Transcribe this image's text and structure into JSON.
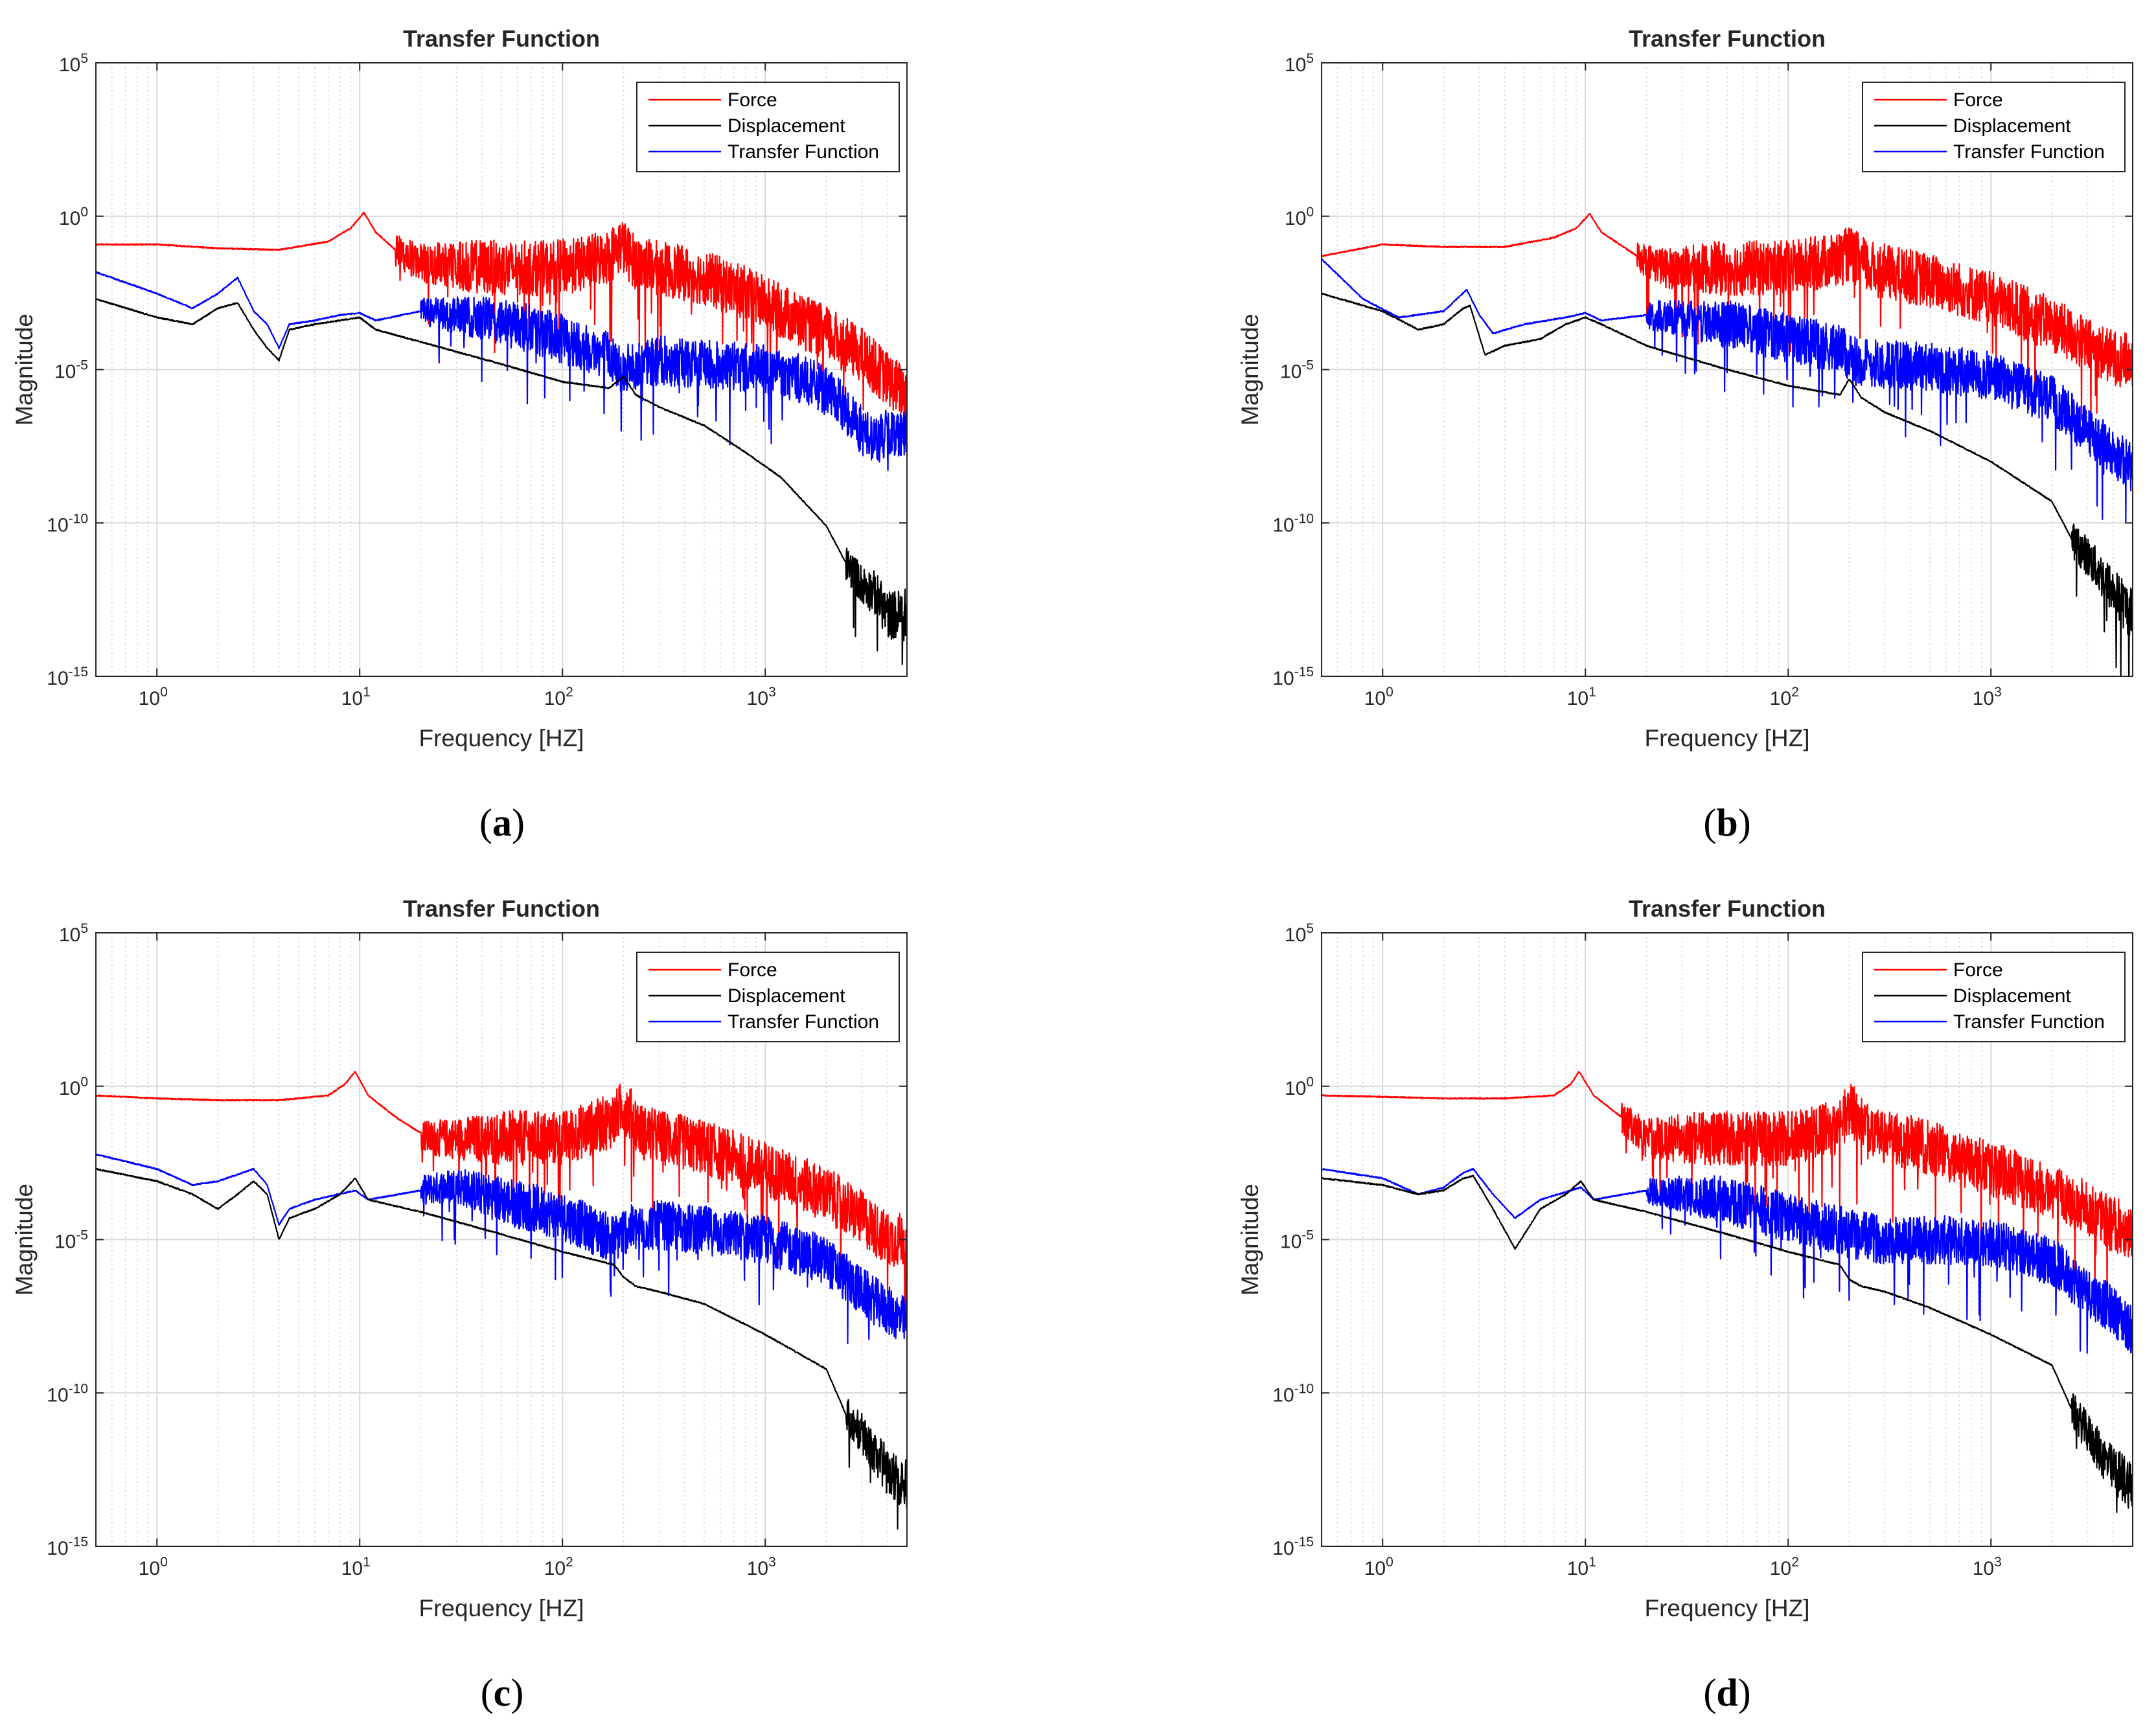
{
  "figure": {
    "panels": [
      "a",
      "b",
      "c",
      "d"
    ]
  },
  "chart_data": [
    {
      "panel": "a",
      "caption": "a",
      "type": "line",
      "title": "Transfer Function",
      "xlabel": "Frequency [HZ]",
      "ylabel": "Magnitude",
      "xscale": "log",
      "yscale": "log",
      "xlim": [
        0.5,
        5000
      ],
      "ylim": [
        1e-15,
        100000
      ],
      "grid": true,
      "legend_position": "top-right",
      "x_ticks": [
        {
          "base": "10",
          "exp": "0"
        },
        {
          "base": "10",
          "exp": "1"
        },
        {
          "base": "10",
          "exp": "2"
        },
        {
          "base": "10",
          "exp": "3"
        }
      ],
      "y_ticks": [
        {
          "base": "10",
          "exp": "5"
        },
        {
          "base": "10",
          "exp": "0"
        },
        {
          "base": "10",
          "exp": "-5"
        },
        {
          "base": "10",
          "exp": "-10"
        },
        {
          "base": "10",
          "exp": "-15"
        }
      ],
      "series": [
        {
          "name": "Force",
          "color": "#ff0000",
          "x": [
            0.5,
            1,
            2,
            4,
            7,
            9,
            10.5,
            12,
            15,
            20,
            30,
            50,
            80,
            120,
            170,
            195,
            230,
            300,
            500,
            800,
            1200,
            2000,
            3000,
            4000,
            5000
          ],
          "y": [
            0.12,
            0.12,
            0.09,
            0.08,
            0.15,
            0.4,
            1.3,
            0.3,
            0.08,
            0.03,
            0.025,
            0.02,
            0.02,
            0.025,
            0.05,
            0.12,
            0.03,
            0.02,
            0.01,
            0.003,
            0.0008,
            0.00015,
            3e-05,
            5e-06,
            1.5e-06
          ],
          "noise_from": 15,
          "noise_amp": 0.9
        },
        {
          "name": "Displacement",
          "color": "#000000",
          "x": [
            0.5,
            1,
            1.5,
            2,
            2.5,
            3,
            3.5,
            4,
            4.5,
            6,
            8,
            10,
            12,
            20,
            50,
            100,
            170,
            200,
            230,
            300,
            500,
            800,
            1200,
            2000,
            2500,
            3000,
            3500,
            4000,
            5000
          ],
          "y": [
            0.002,
            0.0005,
            0.0003,
            0.001,
            0.0015,
            0.0002,
            5e-05,
            2e-05,
            0.0002,
            0.0003,
            0.0004,
            0.0005,
            0.0002,
            8e-05,
            1.5e-05,
            4e-06,
            2.5e-06,
            6e-06,
            1.5e-06,
            6e-07,
            1.5e-07,
            2e-08,
            3e-09,
            8e-11,
            5e-12,
            1e-12,
            5e-13,
            1e-13,
            1e-13
          ],
          "noise_from": 2500,
          "noise_amp": 1.0
        },
        {
          "name": "Transfer Function",
          "color": "#0000ff",
          "x": [
            0.5,
            1,
            1.5,
            2,
            2.5,
            3,
            3.5,
            4,
            4.5,
            6,
            8,
            10,
            12,
            20,
            50,
            100,
            170,
            200,
            300,
            500,
            1000,
            1500,
            2000,
            2500,
            3000,
            3500,
            4000,
            5000
          ],
          "y": [
            0.015,
            0.003,
            0.001,
            0.003,
            0.01,
            0.0008,
            0.0003,
            5e-05,
            0.0003,
            0.0004,
            0.0006,
            0.0007,
            0.0004,
            0.0008,
            0.0004,
            0.0001,
            3e-05,
            1e-05,
            2e-05,
            1.5e-05,
            1e-05,
            5e-06,
            2e-06,
            5e-07,
            1e-07,
            5e-08,
            8e-08,
            1e-07
          ],
          "noise_from": 20,
          "noise_amp": 0.8
        }
      ]
    },
    {
      "panel": "b",
      "caption": "b",
      "type": "line",
      "title": "Transfer Function",
      "xlabel": "Frequency [HZ]",
      "ylabel": "Magnitude",
      "xscale": "log",
      "yscale": "log",
      "xlim": [
        0.5,
        5000
      ],
      "ylim": [
        1e-15,
        100000
      ],
      "grid": true,
      "legend_position": "top-right",
      "x_ticks": [
        {
          "base": "10",
          "exp": "0"
        },
        {
          "base": "10",
          "exp": "1"
        },
        {
          "base": "10",
          "exp": "2"
        },
        {
          "base": "10",
          "exp": "3"
        }
      ],
      "y_ticks": [
        {
          "base": "10",
          "exp": "5"
        },
        {
          "base": "10",
          "exp": "0"
        },
        {
          "base": "10",
          "exp": "-5"
        },
        {
          "base": "10",
          "exp": "-10"
        },
        {
          "base": "10",
          "exp": "-15"
        }
      ],
      "series": [
        {
          "name": "Force",
          "color": "#ff0000",
          "x": [
            0.5,
            1,
            2,
            4,
            7,
            9,
            10.5,
            12,
            18,
            25,
            50,
            100,
            180,
            200,
            250,
            500,
            1000,
            2000,
            3000,
            4000,
            5000
          ],
          "y": [
            0.05,
            0.12,
            0.1,
            0.1,
            0.2,
            0.4,
            1.2,
            0.3,
            0.05,
            0.02,
            0.02,
            0.02,
            0.04,
            0.06,
            0.02,
            0.008,
            0.002,
            0.0003,
            6e-05,
            2.5e-05,
            1.8e-05
          ],
          "noise_from": 18,
          "noise_amp": 0.9
        },
        {
          "name": "Displacement",
          "color": "#000000",
          "x": [
            0.5,
            1,
            1.5,
            2,
            2.5,
            2.7,
            3.2,
            4,
            6,
            8,
            10,
            12,
            20,
            50,
            100,
            180,
            200,
            230,
            300,
            500,
            1000,
            2000,
            2500,
            3000,
            3500,
            4000,
            5000
          ],
          "y": [
            0.003,
            0.0008,
            0.0002,
            0.0003,
            0.001,
            0.0012,
            3e-05,
            6e-05,
            0.0001,
            0.0003,
            0.0005,
            0.0003,
            6e-05,
            1e-05,
            3e-06,
            1.5e-06,
            5e-06,
            1.2e-06,
            4e-07,
            1e-07,
            1e-08,
            5e-10,
            3e-11,
            8e-12,
            2e-12,
            6e-13,
            1e-13
          ],
          "noise_from": 2500,
          "noise_amp": 1.0
        },
        {
          "name": "Transfer Function",
          "color": "#0000ff",
          "x": [
            0.5,
            0.8,
            1.2,
            2,
            2.6,
            3,
            3.5,
            5,
            8,
            10,
            12,
            20,
            50,
            100,
            180,
            200,
            300,
            500,
            1000,
            2000,
            3000,
            4000,
            5000
          ],
          "y": [
            0.04,
            0.002,
            0.0005,
            0.0008,
            0.004,
            0.0006,
            0.00015,
            0.0003,
            0.0005,
            0.0007,
            0.0004,
            0.0006,
            0.0003,
            0.0001,
            5e-05,
            2e-05,
            1.5e-05,
            1.2e-05,
            6e-06,
            1e-06,
            1e-07,
            2e-08,
            6e-09
          ],
          "noise_from": 20,
          "noise_amp": 0.8
        }
      ]
    },
    {
      "panel": "c",
      "caption": "c",
      "type": "line",
      "title": "Transfer Function",
      "xlabel": "Frequency [HZ]",
      "ylabel": "Magnitude",
      "xscale": "log",
      "yscale": "log",
      "xlim": [
        0.5,
        5000
      ],
      "ylim": [
        1e-15,
        100000
      ],
      "grid": true,
      "legend_position": "top-right",
      "x_ticks": [
        {
          "base": "10",
          "exp": "0"
        },
        {
          "base": "10",
          "exp": "1"
        },
        {
          "base": "10",
          "exp": "2"
        },
        {
          "base": "10",
          "exp": "3"
        }
      ],
      "y_ticks": [
        {
          "base": "10",
          "exp": "5"
        },
        {
          "base": "10",
          "exp": "0"
        },
        {
          "base": "10",
          "exp": "-5"
        },
        {
          "base": "10",
          "exp": "-10"
        },
        {
          "base": "10",
          "exp": "-15"
        }
      ],
      "series": [
        {
          "name": "Force",
          "color": "#ff0000",
          "x": [
            0.5,
            1,
            2,
            4,
            7,
            8.5,
            9.5,
            11,
            15,
            22,
            50,
            100,
            180,
            200,
            250,
            500,
            1000,
            2000,
            3000,
            4000,
            5000
          ],
          "y": [
            0.5,
            0.4,
            0.35,
            0.35,
            0.5,
            1.2,
            3.0,
            0.5,
            0.1,
            0.02,
            0.02,
            0.02,
            0.08,
            0.25,
            0.03,
            0.01,
            0.002,
            0.0003,
            5e-05,
            1e-05,
            1e-05
          ],
          "noise_from": 20,
          "noise_amp": 0.9
        },
        {
          "name": "Displacement",
          "color": "#000000",
          "x": [
            0.5,
            1,
            1.5,
            2,
            2.5,
            3,
            3.5,
            4,
            4.5,
            6,
            8,
            9.5,
            11,
            20,
            50,
            100,
            180,
            200,
            230,
            300,
            500,
            1000,
            2000,
            2500,
            3000,
            3500,
            4000,
            5000
          ],
          "y": [
            0.002,
            0.0008,
            0.0003,
            0.0001,
            0.0003,
            0.0008,
            0.0003,
            1e-05,
            5e-05,
            0.0001,
            0.0003,
            0.001,
            0.0002,
            8e-05,
            1.5e-05,
            4e-06,
            1.5e-06,
            6e-07,
            3e-07,
            2e-07,
            8e-08,
            8e-09,
            6e-10,
            2e-11,
            5e-12,
            1e-12,
            3e-13,
            1e-13
          ],
          "noise_from": 2500,
          "noise_amp": 1.0
        },
        {
          "name": "Transfer Function",
          "color": "#0000ff",
          "x": [
            0.5,
            1,
            1.5,
            2,
            3,
            3.5,
            4,
            4.5,
            6,
            9.5,
            11,
            20,
            30,
            50,
            100,
            180,
            200,
            300,
            500,
            1000,
            2000,
            3000,
            4000,
            5000
          ],
          "y": [
            0.006,
            0.002,
            0.0006,
            0.0008,
            0.002,
            0.0006,
            3e-05,
            0.0001,
            0.0002,
            0.0004,
            0.0002,
            0.0004,
            0.0006,
            0.0002,
            6e-05,
            1e-05,
            2e-05,
            3e-05,
            2e-05,
            1e-05,
            2e-06,
            2e-07,
            5e-08,
            2e-08
          ],
          "noise_from": 20,
          "noise_amp": 0.8
        }
      ]
    },
    {
      "panel": "d",
      "caption": "d",
      "type": "line",
      "title": "Transfer Function",
      "xlabel": "Frequency [HZ]",
      "ylabel": "Magnitude",
      "xscale": "log",
      "yscale": "log",
      "xlim": [
        0.5,
        5000
      ],
      "ylim": [
        1e-15,
        100000
      ],
      "grid": true,
      "legend_position": "top-right",
      "x_ticks": [
        {
          "base": "10",
          "exp": "0"
        },
        {
          "base": "10",
          "exp": "1"
        },
        {
          "base": "10",
          "exp": "2"
        },
        {
          "base": "10",
          "exp": "3"
        }
      ],
      "y_ticks": [
        {
          "base": "10",
          "exp": "5"
        },
        {
          "base": "10",
          "exp": "0"
        },
        {
          "base": "10",
          "exp": "-5"
        },
        {
          "base": "10",
          "exp": "-10"
        },
        {
          "base": "10",
          "exp": "-15"
        }
      ],
      "series": [
        {
          "name": "Force",
          "color": "#ff0000",
          "x": [
            0.5,
            1,
            2,
            4,
            7,
            8.5,
            9.3,
            11,
            15,
            20,
            50,
            100,
            180,
            200,
            250,
            500,
            1000,
            2000,
            3000,
            4000,
            5000
          ],
          "y": [
            0.5,
            0.45,
            0.4,
            0.4,
            0.5,
            1.2,
            3.0,
            0.5,
            0.1,
            0.02,
            0.02,
            0.02,
            0.05,
            0.2,
            0.03,
            0.01,
            0.002,
            0.0004,
            0.0001,
            3e-05,
            2e-05
          ],
          "noise_from": 15,
          "noise_amp": 0.9
        },
        {
          "name": "Displacement",
          "color": "#000000",
          "x": [
            0.5,
            1,
            1.5,
            2,
            2.5,
            2.8,
            3.5,
            4.5,
            6,
            8,
            9.5,
            11,
            20,
            50,
            100,
            180,
            200,
            230,
            300,
            500,
            1000,
            2000,
            2500,
            3000,
            3500,
            4000,
            5000
          ],
          "y": [
            0.001,
            0.0006,
            0.0003,
            0.0004,
            0.001,
            0.0012,
            0.0001,
            5e-06,
            0.0001,
            0.0003,
            0.0008,
            0.0002,
            8e-05,
            1.5e-05,
            4e-06,
            1.5e-06,
            5e-07,
            3e-07,
            2e-07,
            6e-08,
            8e-09,
            8e-10,
            3e-11,
            5e-12,
            1e-12,
            3e-13,
            1e-13
          ],
          "noise_from": 2500,
          "noise_amp": 1.0
        },
        {
          "name": "Transfer Function",
          "color": "#0000ff",
          "x": [
            0.5,
            1,
            1.5,
            2,
            2.5,
            2.8,
            3.5,
            4.5,
            6,
            9.5,
            11,
            20,
            50,
            100,
            180,
            200,
            300,
            500,
            1000,
            2000,
            3000,
            4000,
            5000
          ],
          "y": [
            0.002,
            0.001,
            0.0003,
            0.0005,
            0.0015,
            0.002,
            0.0003,
            5e-05,
            0.0002,
            0.0005,
            0.0002,
            0.0004,
            0.0002,
            5e-05,
            2e-05,
            1.5e-05,
            1e-05,
            1e-05,
            8e-06,
            2e-06,
            2e-07,
            5e-08,
            1e-08
          ],
          "noise_from": 20,
          "noise_amp": 0.8
        }
      ]
    }
  ]
}
